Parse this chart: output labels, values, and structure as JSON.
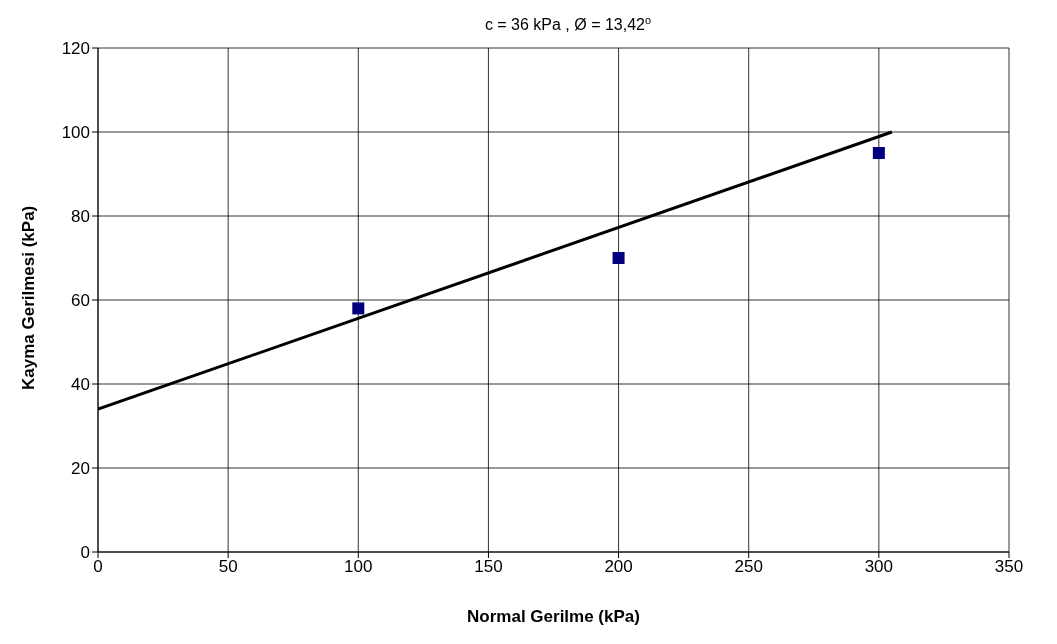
{
  "chart_data": {
    "type": "scatter",
    "title": "c = 36 kPa ,   Ø = 13,42$^{o}$",
    "xlabel": "Normal Gerilme (kPa)",
    "ylabel": "Kayma Gerilmesi (kPa)",
    "series": [
      {
        "color": "#000080",
        "x": [
          100,
          200,
          300
        ],
        "values": [
          58,
          70,
          95
        ],
        "marker": "square"
      },
      {
        "type": "line",
        "color": "#000000",
        "x": [
          0,
          305
        ],
        "values": [
          34,
          100
        ],
        "marker": "none",
        "line_style": "solid"
      }
    ],
    "xlim": [
      0,
      350
    ],
    "xticks": [
      0,
      50,
      100,
      150,
      200,
      250,
      300,
      350
    ],
    "ylim": [
      0,
      120
    ],
    "yticks": [
      0,
      20,
      40,
      60,
      80,
      100,
      120
    ],
    "grid": true,
    "legend": false
  }
}
